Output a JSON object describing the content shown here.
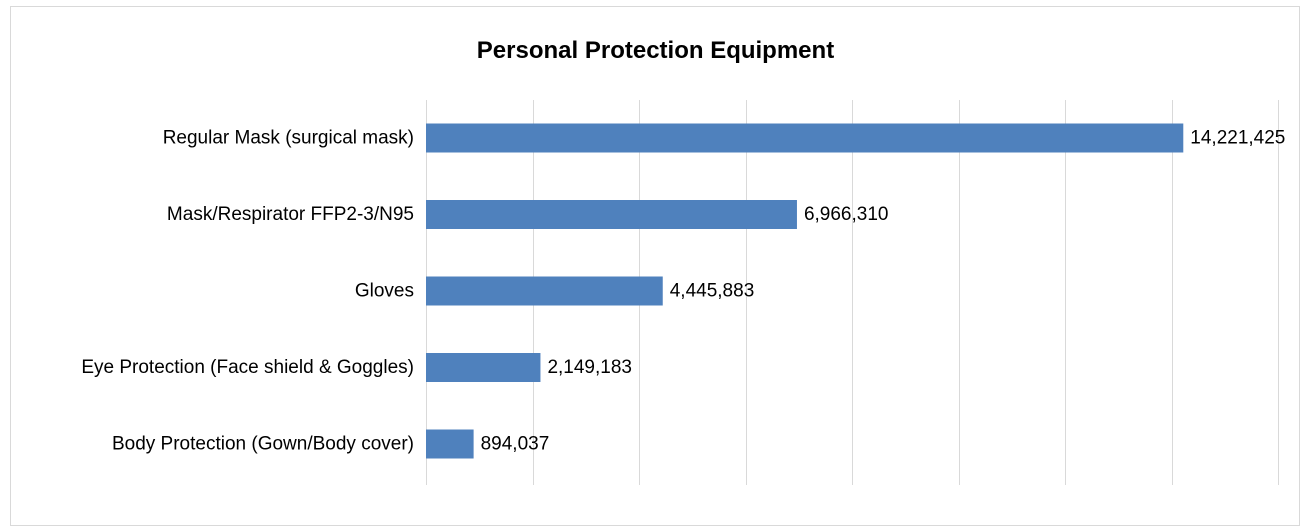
{
  "chart_data": {
    "type": "bar",
    "orientation": "horizontal",
    "title": "Personal Protection Equipment",
    "categories": [
      "Regular Mask (surgical mask)",
      "Mask/Respirator FFP2-3/N95",
      "Gloves",
      "Eye Protection (Face shield & Goggles)",
      "Body Protection (Gown/Body cover)"
    ],
    "values": [
      14221425,
      6966310,
      4445883,
      2149183,
      894037
    ],
    "value_labels": [
      "14,221,425",
      "6,966,310",
      "4,445,883",
      "2,149,183",
      "894,037"
    ],
    "xlim": [
      0,
      16000000
    ],
    "x_gridline_step": 2000000,
    "x_tick_labels_shown": false,
    "grid": true,
    "legend": "none",
    "bar_color": "#4f81bd",
    "grid_color": "#d9d9d9"
  }
}
